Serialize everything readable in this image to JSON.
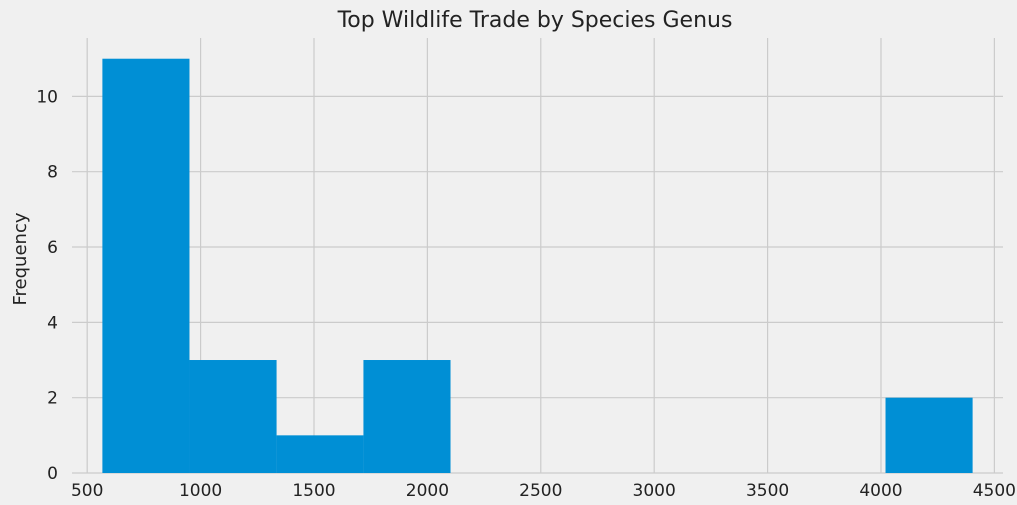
{
  "chart_data": {
    "type": "bar",
    "title": "Top Wildlife Trade by Species Genus",
    "xlabel": "",
    "ylabel": "Frequency",
    "bin_edges": [
      567,
      951,
      1335,
      1718,
      2102,
      2486,
      2869,
      3253,
      3637,
      4020,
      4404
    ],
    "values": [
      11,
      3,
      1,
      3,
      0,
      0,
      0,
      0,
      0,
      2
    ],
    "xlim": [
      433,
      4538
    ],
    "ylim": [
      0,
      11.55
    ],
    "xticks": [
      500,
      1000,
      1500,
      2000,
      2500,
      3000,
      3500,
      4000,
      4500
    ],
    "yticks": [
      0,
      2,
      4,
      6,
      8,
      10
    ],
    "grid": true,
    "legend": "none",
    "bar_color": "#008fd5",
    "background_color": "#f0f0f0",
    "grid_color": "#cbcbcb"
  }
}
